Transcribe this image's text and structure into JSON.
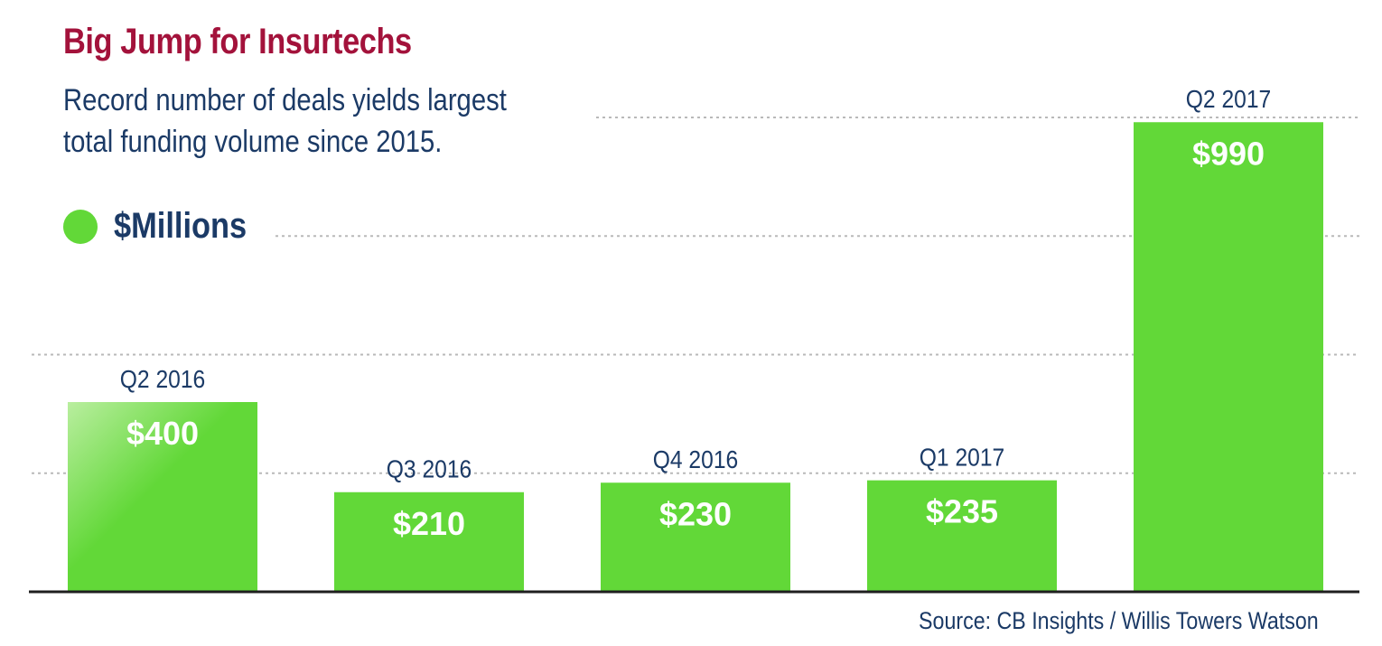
{
  "colors": {
    "title": "#a3123b",
    "text": "#1b3a66",
    "bar": "#62d838",
    "bar_highlight": "#b9ee9f",
    "grid": "#b9b9b9",
    "axis": "#1f1f1f",
    "value_text": "#ffffff"
  },
  "header": {
    "title": "Big Jump for Insurtechs",
    "subtitle": "Record number of deals yields largest total funding volume since 2015."
  },
  "legend": {
    "icon": "green-circle",
    "label": "$Millions"
  },
  "source": "Source: CB Insights / Willis Towers Watson",
  "chart_data": {
    "type": "bar",
    "categories": [
      "Q2 2016",
      "Q3 2016",
      "Q4 2016",
      "Q1 2017",
      "Q2 2017"
    ],
    "values": [
      400,
      210,
      230,
      235,
      990
    ],
    "value_labels": [
      "$400",
      "$210",
      "$230",
      "$235",
      "$990"
    ],
    "ylim": [
      0,
      1000
    ],
    "grid_values": [
      250,
      500,
      750,
      1000
    ],
    "grid": true,
    "grid_style": "dotted",
    "legend": "top-left",
    "xlabel": "",
    "ylabel": ""
  }
}
